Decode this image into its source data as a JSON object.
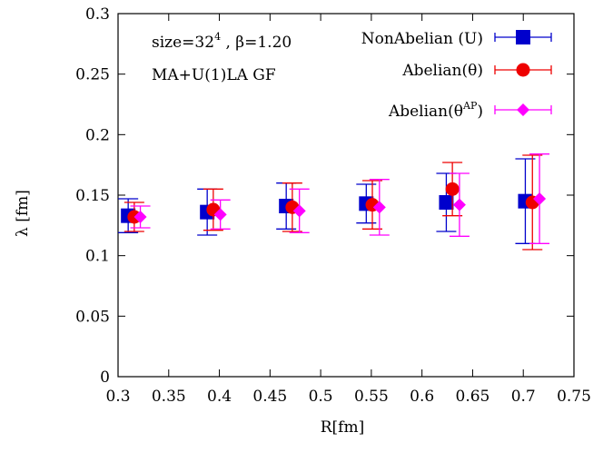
{
  "chart_data": {
    "type": "scatter",
    "title": "",
    "xlabel": "R[fm]",
    "ylabel": "λ [fm]",
    "xlim": [
      0.3,
      0.75
    ],
    "ylim": [
      0,
      0.3
    ],
    "x_ticks": [
      0.3,
      0.35,
      0.4,
      0.45,
      0.5,
      0.55,
      0.6,
      0.65,
      0.7,
      0.75
    ],
    "y_ticks": [
      0,
      0.05,
      0.1,
      0.15,
      0.2,
      0.25,
      0.3
    ],
    "x_tick_labels": [
      "0.3",
      "0.35",
      "0.4",
      "0.45",
      "0.5",
      "0.55",
      "0.6",
      "0.65",
      "0.7",
      "0.75"
    ],
    "y_tick_labels": [
      "0",
      "0.05",
      "0.1",
      "0.15",
      "0.2",
      "0.25",
      "0.3"
    ],
    "grid": false,
    "legend_position": "top-right",
    "annotations": {
      "line1_prefix": "size=32",
      "line1_exp": "4",
      "line1_suffix": " , β=1.20",
      "line2": "MA+U(1)LA GF"
    },
    "series": [
      {
        "name": "NonAbelian (U)",
        "legend_label": "NonAbelian (U)",
        "color": "#0000cc",
        "marker": "square",
        "points": [
          {
            "x": 0.31,
            "y": 0.133,
            "err": 0.014
          },
          {
            "x": 0.388,
            "y": 0.136,
            "err": 0.019
          },
          {
            "x": 0.466,
            "y": 0.141,
            "err": 0.019
          },
          {
            "x": 0.545,
            "y": 0.143,
            "err": 0.016
          },
          {
            "x": 0.624,
            "y": 0.144,
            "err": 0.024
          },
          {
            "x": 0.702,
            "y": 0.145,
            "err": 0.035
          }
        ]
      },
      {
        "name": "Abelian(θ)",
        "legend_label": "Abelian(θ)",
        "color": "#ee0000",
        "marker": "circle",
        "points": [
          {
            "x": 0.316,
            "y": 0.132,
            "err": 0.012
          },
          {
            "x": 0.394,
            "y": 0.138,
            "err": 0.017
          },
          {
            "x": 0.472,
            "y": 0.14,
            "err": 0.02
          },
          {
            "x": 0.551,
            "y": 0.142,
            "err": 0.02
          },
          {
            "x": 0.63,
            "y": 0.155,
            "err": 0.022
          },
          {
            "x": 0.709,
            "y": 0.144,
            "err": 0.039
          }
        ]
      },
      {
        "name": "Abelian(θ^AP)",
        "legend_label_main": "Abelian(θ",
        "legend_label_sup": "AP",
        "legend_label_end": ")",
        "color": "#ff00ff",
        "marker": "diamond",
        "points": [
          {
            "x": 0.322,
            "y": 0.132,
            "err": 0.009
          },
          {
            "x": 0.401,
            "y": 0.134,
            "err": 0.012
          },
          {
            "x": 0.479,
            "y": 0.137,
            "err": 0.018
          },
          {
            "x": 0.558,
            "y": 0.14,
            "err": 0.023
          },
          {
            "x": 0.637,
            "y": 0.142,
            "err": 0.026
          },
          {
            "x": 0.716,
            "y": 0.147,
            "err": 0.037
          }
        ]
      }
    ]
  }
}
